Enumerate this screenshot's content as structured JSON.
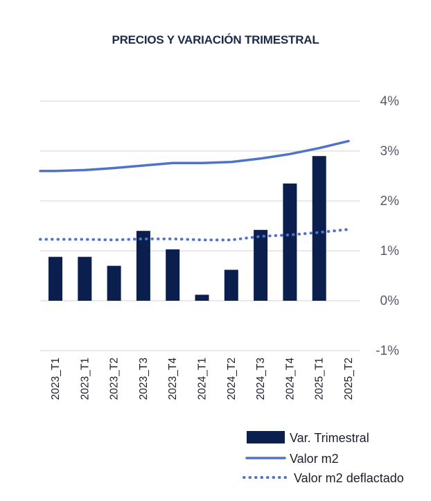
{
  "chart_data": {
    "type": "bar",
    "title": "PRECIOS Y VARIACIÓN TRIMESTRAL",
    "categories": [
      "2023_T1",
      "2023_T1",
      "2023_T2",
      "2023_T3",
      "2023_T4",
      "2024_T1",
      "2024_T2",
      "2024_T3",
      "2024_T4",
      "2025_T1",
      "2025_T2"
    ],
    "ylim": [
      -1,
      4
    ],
    "y_ticks": [
      "-1%",
      "0%",
      "1%",
      "2%",
      "3%",
      "4%"
    ],
    "y_tick_values": [
      -1,
      0,
      1,
      2,
      3,
      4
    ],
    "grid": true,
    "legend_position": "bottom-right",
    "series": [
      {
        "name": "Var. Trimestral",
        "type": "bar",
        "color": "#0b1f4f",
        "values": [
          0.88,
          0.88,
          0.7,
          1.4,
          1.03,
          0.12,
          0.62,
          1.42,
          2.35,
          2.9,
          null
        ]
      },
      {
        "name": "Valor m2",
        "type": "line",
        "color": "#4e73c7",
        "values": [
          2.6,
          2.62,
          2.66,
          2.71,
          2.76,
          2.76,
          2.78,
          2.85,
          2.94,
          3.06,
          3.2
        ]
      },
      {
        "name": "Valor m2 deflactado",
        "type": "line-dotted",
        "color": "#4e73c7",
        "values": [
          1.23,
          1.23,
          1.22,
          1.24,
          1.24,
          1.22,
          1.22,
          1.29,
          1.32,
          1.37,
          1.43
        ]
      }
    ]
  }
}
